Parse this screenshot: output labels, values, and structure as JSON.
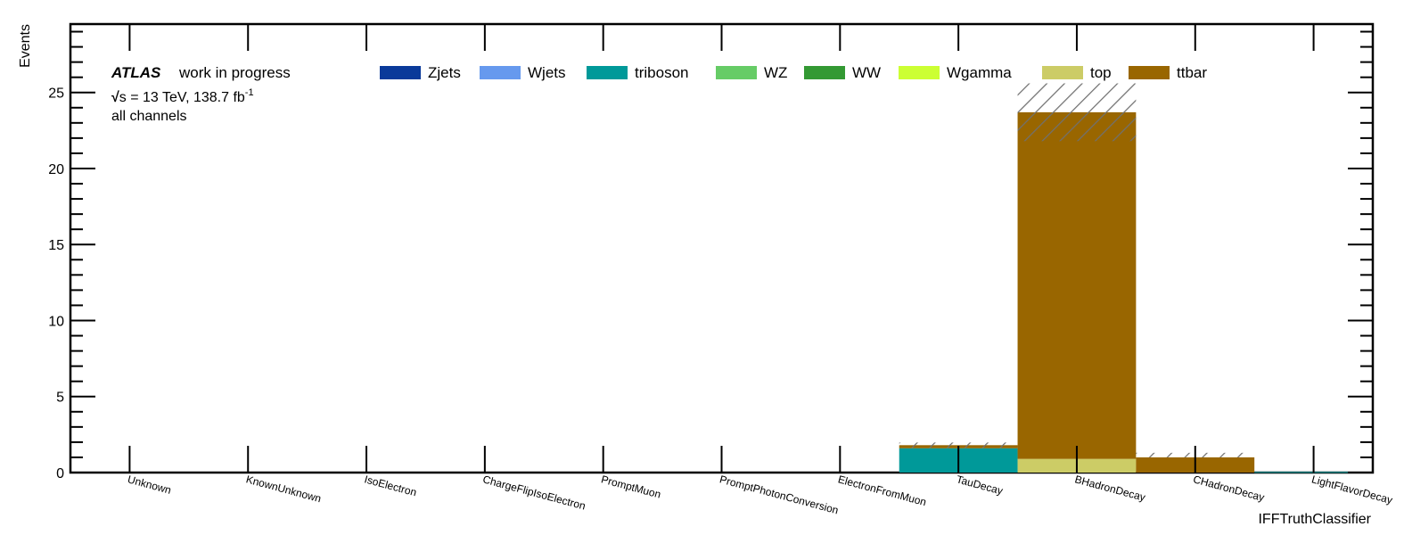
{
  "chart_data": {
    "type": "bar",
    "stacked": true,
    "title": "",
    "xlabel": "IFFTruthClassifier",
    "ylabel": "Events",
    "ylim": [
      0,
      29.5
    ],
    "yticks": [
      0,
      5,
      10,
      15,
      20,
      25
    ],
    "ytick_labels": [
      "0",
      "5",
      "10",
      "15",
      "20",
      "25"
    ],
    "categories": [
      "Unknown",
      "KnownUnknown",
      "IsoElectron",
      "ChargeFlipIsoElectron",
      "PromptMuon",
      "PromptPhotonConversion",
      "ElectronFromMuon",
      "TauDecay",
      "BHadronDecay",
      "CHadronDecay",
      "LightFlavorDecay"
    ],
    "series": [
      {
        "name": "Zjets",
        "color": "#0a3a9a",
        "values": [
          0,
          0,
          0,
          0,
          0,
          0,
          0,
          0,
          0,
          0,
          0
        ]
      },
      {
        "name": "Wjets",
        "color": "#6699ee",
        "values": [
          0,
          0,
          0,
          0,
          0,
          0,
          0,
          0,
          0,
          0,
          0
        ]
      },
      {
        "name": "triboson",
        "color": "#009999",
        "values": [
          0,
          0,
          0,
          0,
          0,
          0,
          0,
          1.6,
          0,
          0,
          0.05
        ]
      },
      {
        "name": "WZ",
        "color": "#66cc66",
        "values": [
          0,
          0,
          0,
          0,
          0,
          0,
          0,
          0,
          0,
          0,
          0
        ]
      },
      {
        "name": "WW",
        "color": "#339933",
        "values": [
          0,
          0,
          0,
          0,
          0,
          0,
          0,
          0,
          0,
          0,
          0
        ]
      },
      {
        "name": "Wgamma",
        "color": "#ccff33",
        "values": [
          0,
          0,
          0,
          0,
          0,
          0,
          0,
          0,
          0,
          0,
          0
        ]
      },
      {
        "name": "top",
        "color": "#cccc66",
        "values": [
          0,
          0,
          0,
          0,
          0,
          0,
          0,
          0,
          0.9,
          0,
          0
        ]
      },
      {
        "name": "ttbar",
        "color": "#996600",
        "values": [
          0,
          0,
          0,
          0,
          0,
          0,
          0,
          0.2,
          22.8,
          1.0,
          0
        ]
      }
    ],
    "uncertainty": {
      "style": "hatched band",
      "color": "#707070",
      "low": [
        0,
        0,
        0,
        0,
        0,
        0,
        0,
        1.8,
        21.8,
        1.0,
        0
      ],
      "high": [
        0,
        0,
        0,
        0,
        0,
        0,
        0,
        1.8,
        25.6,
        1.3,
        0
      ]
    },
    "annotations": {
      "experiment": "ATLAS",
      "status": "work in progress",
      "energy_prefix": "s",
      "energy_text": " = 13 TeV, 138.7 fb",
      "energy_sup": "-1",
      "channel": "all channels"
    },
    "legend_position": "top"
  }
}
